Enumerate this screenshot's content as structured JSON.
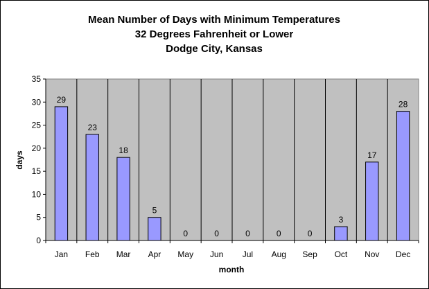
{
  "chart_data": {
    "type": "bar",
    "title_lines": [
      "Mean Number of Days with Minimum Temperatures",
      "32 Degrees Fahrenheit or Lower",
      "Dodge City, Kansas"
    ],
    "xlabel": "month",
    "ylabel": "days",
    "categories": [
      "Jan",
      "Feb",
      "Mar",
      "Apr",
      "May",
      "Jun",
      "Jul",
      "Aug",
      "Sep",
      "Oct",
      "Nov",
      "Dec"
    ],
    "values": [
      29,
      23,
      18,
      5,
      0,
      0,
      0,
      0,
      0,
      3,
      17,
      28
    ],
    "data_labels": [
      "29",
      "23",
      "18",
      "5",
      "0",
      "0",
      "0",
      "0",
      "0",
      "3",
      "17",
      "28"
    ],
    "ylim": [
      0,
      35
    ],
    "yticks": [
      0,
      5,
      10,
      15,
      20,
      25,
      30,
      35
    ],
    "grid": "vertical category dividers",
    "legend": "none",
    "colors": {
      "plot_background": "#c0c0c0",
      "bar_fill": "#9999ff",
      "bar_stroke": "#000000",
      "gridline": "#000000"
    }
  }
}
